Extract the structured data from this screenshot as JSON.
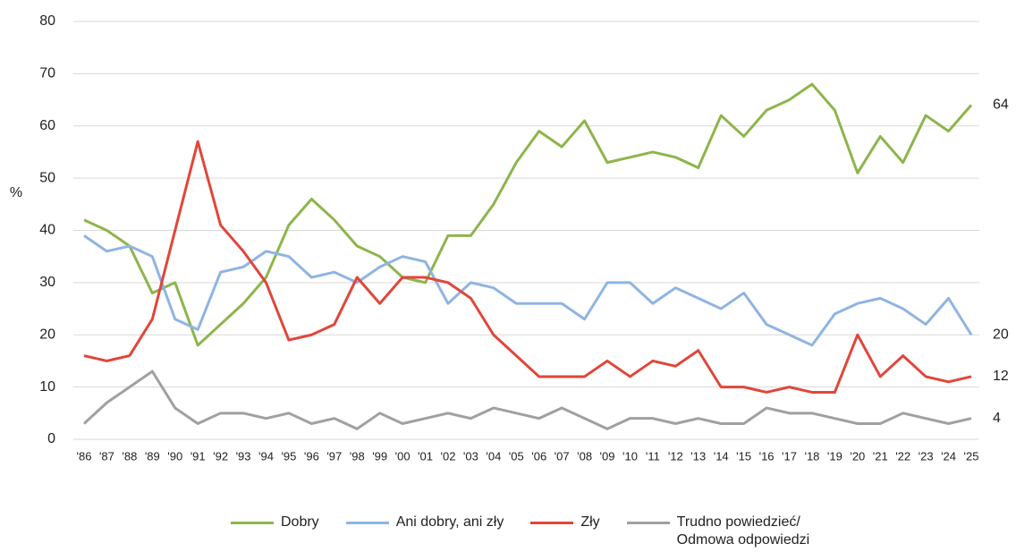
{
  "chart_data": {
    "type": "line",
    "y_label": "%",
    "categories": [
      "'86",
      "'87",
      "'88",
      "'89",
      "'90",
      "'91",
      "'92",
      "'93",
      "'94",
      "'95",
      "'96",
      "'97",
      "'98",
      "'99",
      "'00",
      "'01",
      "'02",
      "'03",
      "'04",
      "'05",
      "'06",
      "'07",
      "'08",
      "'09",
      "'10",
      "'11",
      "'12",
      "'13",
      "'14",
      "'15",
      "'16",
      "'17",
      "'18",
      "'19",
      "'20",
      "'21",
      "'22",
      "'23",
      "'24",
      "'25"
    ],
    "series": [
      {
        "name": "Dobry",
        "color": "#8db54b",
        "values": [
          42,
          40,
          37,
          28,
          30,
          18,
          22,
          26,
          31,
          41,
          46,
          42,
          37,
          35,
          31,
          30,
          39,
          39,
          45,
          53,
          59,
          56,
          61,
          53,
          54,
          55,
          54,
          52,
          62,
          58,
          63,
          65,
          68,
          63,
          51,
          58,
          53,
          62,
          59,
          64
        ]
      },
      {
        "name": "Ani dobry, ani zły",
        "color": "#8fb4e3",
        "values": [
          39,
          36,
          37,
          35,
          23,
          21,
          32,
          33,
          36,
          35,
          31,
          32,
          30,
          33,
          35,
          34,
          26,
          30,
          29,
          26,
          26,
          26,
          23,
          30,
          30,
          26,
          29,
          27,
          25,
          28,
          22,
          20,
          18,
          24,
          26,
          27,
          25,
          22,
          27,
          20
        ]
      },
      {
        "name": "Zły",
        "color": "#e0463a",
        "values": [
          16,
          15,
          16,
          23,
          40,
          57,
          41,
          36,
          30,
          19,
          20,
          22,
          31,
          26,
          31,
          31,
          30,
          27,
          20,
          16,
          12,
          12,
          12,
          15,
          12,
          15,
          14,
          17,
          10,
          10,
          9,
          10,
          9,
          9,
          20,
          12,
          16,
          12,
          11,
          12
        ]
      },
      {
        "name": "Trudno powiedzieć/\nOdmowa odpowiedzi",
        "color": "#a0a0a0",
        "values": [
          3,
          7,
          10,
          13,
          6,
          3,
          5,
          5,
          4,
          5,
          3,
          4,
          2,
          5,
          3,
          4,
          5,
          4,
          6,
          5,
          4,
          6,
          4,
          2,
          4,
          4,
          3,
          4,
          3,
          3,
          6,
          5,
          5,
          4,
          3,
          3,
          5,
          4,
          3,
          4
        ]
      }
    ],
    "ylim": [
      0,
      80
    ],
    "yticks": [
      0,
      10,
      20,
      30,
      40,
      50,
      60,
      70,
      80
    ],
    "grid": true,
    "legend": "bottom"
  }
}
